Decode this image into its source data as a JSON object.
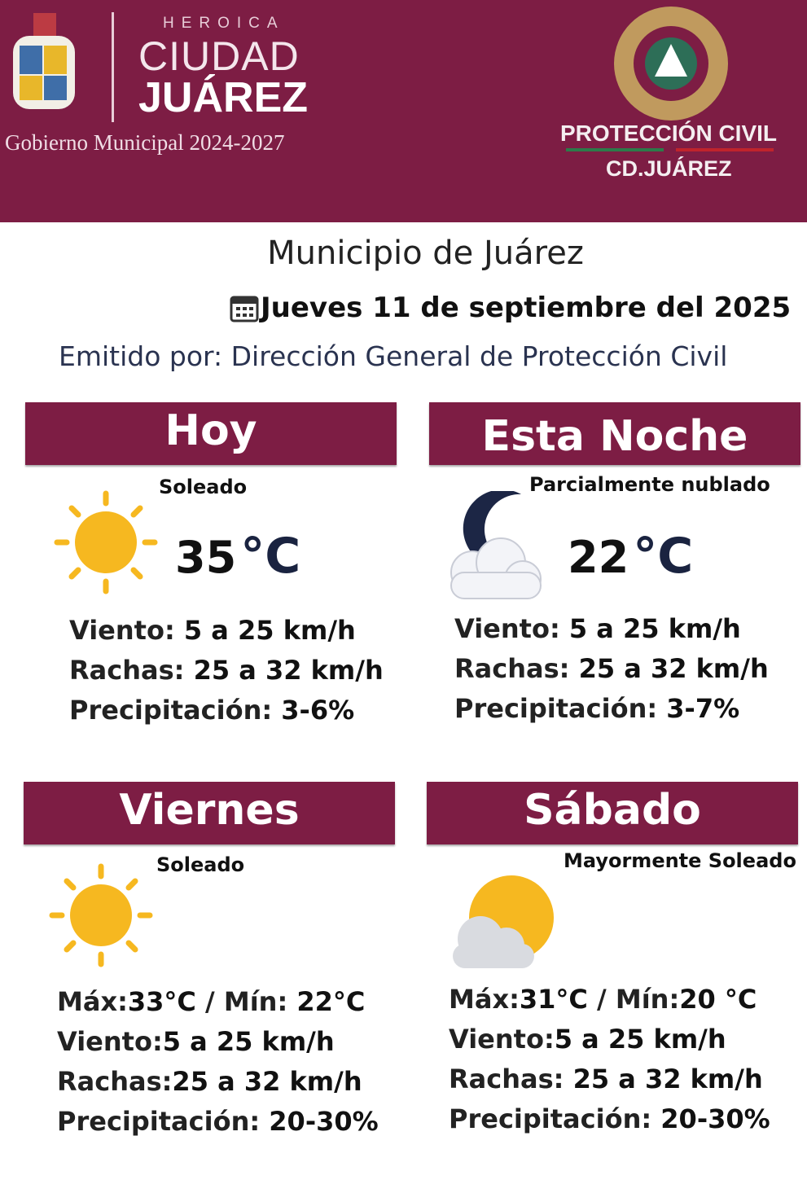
{
  "header": {
    "heroica": "HEROICA",
    "ciudad": "CIUDAD",
    "juarez": "JUÁREZ",
    "gobierno": "Gobierno Municipal 2024-2027",
    "pc_title": "PROTECCIÓN CIVIL",
    "pc_city": "CD.JUÁREZ",
    "brand_color": "#7d1d44"
  },
  "title": "Municipio de Juárez",
  "date": "Jueves 11 de septiembre del 2025",
  "emitido": "Emitido por: Dirección General de Protección Civil",
  "labels": {
    "viento": "Viento:",
    "rachas": "Rachas:",
    "precip": "Precipitación:",
    "max": "Máx:",
    "min": " / Mín:",
    "unit": "°C"
  },
  "panels": [
    {
      "title": "Hoy",
      "condition": "Soleado",
      "icon": "sun",
      "temp": "35",
      "viento": "5 a 25 km/h",
      "rachas": "25 a 32  km/h",
      "precip": "3-6%"
    },
    {
      "title": "Esta Noche",
      "condition": "Parcialmente nublado",
      "icon": "moon-cloud",
      "temp": "22",
      "viento": "5 a 25 km/h",
      "rachas": "25 a 32 km/h",
      "precip": "3-7%"
    },
    {
      "title": "Viernes",
      "condition": "Soleado",
      "icon": "sun",
      "max": "33°C",
      "min": "22°C",
      "viento": "5 a 25 km/h",
      "rachas": "25 a 32 km/h",
      "precip": "20-30%"
    },
    {
      "title": "Sábado",
      "condition": "Mayormente Soleado",
      "icon": "sun-cloud",
      "max": "31°C",
      "min": "20 °C",
      "viento": "5 a 25 km/h",
      "rachas": "25 a 32 km/h",
      "precip": "20-30%"
    }
  ]
}
